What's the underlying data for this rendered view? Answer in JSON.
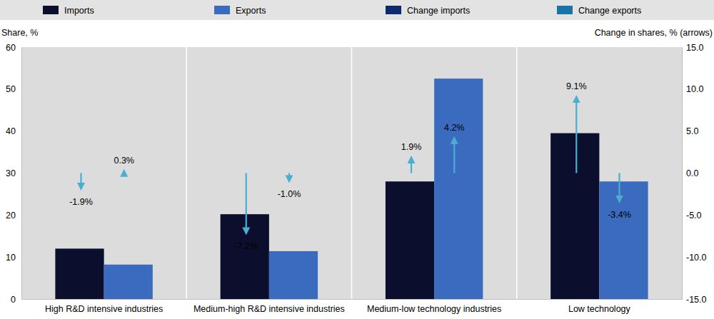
{
  "chart_data": {
    "type": "bar",
    "categories": [
      "High R&D intensive industries",
      "Medium-high R&D intensive industries",
      "Medium-low technology industries",
      "Low technology"
    ],
    "y_label": "Share, %",
    "y2_label": "Change in shares, % (arrows)",
    "ylim": [
      0,
      60
    ],
    "yticks": [
      0,
      10,
      20,
      30,
      40,
      50,
      60
    ],
    "y2lim": [
      -15,
      15
    ],
    "y2ticks": [
      {
        "value": -15,
        "label": "-15.0"
      },
      {
        "value": -10,
        "label": "-10.0"
      },
      {
        "value": -5,
        "label": "-5.0"
      },
      {
        "value": 0,
        "label": "0.0"
      },
      {
        "value": 5,
        "label": "5.0"
      },
      {
        "value": 10,
        "label": "10.0"
      },
      {
        "value": 15,
        "label": "15.0"
      }
    ],
    "grid": false,
    "legend": "top",
    "series": [
      {
        "name": "Imports",
        "color": "#0b0f2d",
        "values": [
          12,
          20.2,
          28,
          39.5
        ]
      },
      {
        "name": "Exports",
        "color": "#3a6bbf",
        "values": [
          8.2,
          11.4,
          52.5,
          28
        ]
      },
      {
        "name": "Change imports",
        "type": "arrow",
        "axis": "y2",
        "color": "#0d2b6b",
        "colors": [
          "#4aaed1",
          "#4aaed1",
          "#4aaed1",
          "#4aaed1"
        ],
        "data_labels": true,
        "values": [
          -1.9,
          -7.2,
          1.9,
          9.1
        ],
        "value_labels": [
          "-1.9%",
          "-7.2%",
          "1.9%",
          "9.1%"
        ]
      },
      {
        "name": "Change exports",
        "type": "arrow",
        "axis": "y2",
        "color": "#1a73a8",
        "colors": [
          "#4aaed1",
          "#4aaed1",
          "#4aaed1",
          "#4aaed1"
        ],
        "data_labels": true,
        "values": [
          0.3,
          -1.0,
          4.2,
          -3.4
        ],
        "value_labels": [
          "0.3%",
          "-1.0%",
          "4.2%",
          "-3.4%"
        ]
      }
    ]
  }
}
